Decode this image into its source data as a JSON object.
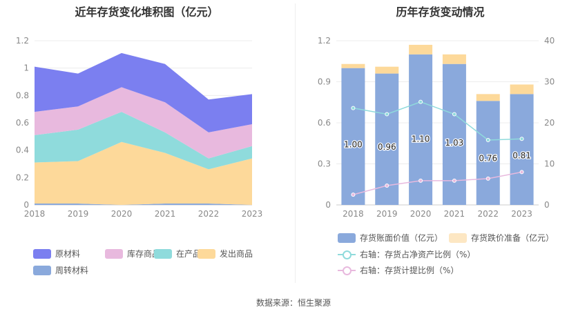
{
  "left_chart": {
    "title": "近年存货变化堆积图（亿元）"
  },
  "right_chart": {
    "title": "历年存货变动情况"
  },
  "source": "数据来源：恒生聚源",
  "colors": {
    "raw_material": "#7b7ff0",
    "inventory_goods": "#e8b9de",
    "wip": "#8fdbdc",
    "shipped_goods": "#fdd99a",
    "turnover_material": "#8aa9dc",
    "book_value": "#8aa9dc",
    "impairment": "#fdd99a",
    "ratio_line": "#8fdbdc",
    "provision_line": "#e8b9de"
  },
  "chart_data": [
    {
      "type": "area",
      "stacked": true,
      "title": "近年存货变化堆积图（亿元）",
      "categories": [
        "2018",
        "2019",
        "2020",
        "2021",
        "2022",
        "2023"
      ],
      "ylim": [
        0,
        1.2
      ],
      "yticks": [
        "0",
        "0.2",
        "0.4",
        "0.6",
        "0.8",
        "1",
        "1.2"
      ],
      "series": [
        {
          "name": "周转材料",
          "color_key": "turnover_material",
          "values": [
            0.01,
            0.01,
            0.0,
            0.01,
            0.01,
            0.0
          ]
        },
        {
          "name": "发出商品",
          "color_key": "shipped_goods",
          "values": [
            0.3,
            0.31,
            0.46,
            0.37,
            0.25,
            0.34
          ]
        },
        {
          "name": "在产品",
          "color_key": "wip",
          "values": [
            0.2,
            0.23,
            0.22,
            0.15,
            0.08,
            0.09
          ]
        },
        {
          "name": "库存商品",
          "color_key": "inventory_goods",
          "values": [
            0.17,
            0.17,
            0.18,
            0.22,
            0.19,
            0.16
          ]
        },
        {
          "name": "原材料",
          "color_key": "raw_material",
          "values": [
            0.33,
            0.24,
            0.25,
            0.28,
            0.24,
            0.22
          ]
        }
      ],
      "legend": [
        "原材料",
        "库存商品",
        "在产品",
        "发出商品",
        "周转材料"
      ]
    },
    {
      "type": "bar",
      "stacked": true,
      "title": "历年存货变动情况",
      "categories": [
        "2018",
        "2019",
        "2020",
        "2021",
        "2022",
        "2023"
      ],
      "ylim": [
        0,
        1.2
      ],
      "yticks": [
        "0",
        "0.3",
        "0.6",
        "0.9",
        "1.2"
      ],
      "y2lim": [
        0,
        40
      ],
      "y2ticks": [
        "0",
        "10",
        "20",
        "30",
        "40"
      ],
      "series": [
        {
          "name": "存货账面价值（亿元）",
          "color_key": "book_value",
          "values": [
            1.0,
            0.96,
            1.1,
            1.03,
            0.76,
            0.81
          ],
          "labels": [
            "1.00",
            "0.96",
            "1.10",
            "1.03",
            "0.76",
            "0.81"
          ]
        },
        {
          "name": "存货跌价准备（亿元）",
          "color_key": "impairment",
          "values": [
            0.03,
            0.05,
            0.07,
            0.07,
            0.05,
            0.07
          ]
        }
      ],
      "lines": [
        {
          "name": "右轴：存货占净资产比例（%）",
          "color_key": "ratio_line",
          "axis": "right",
          "values": [
            23.6,
            22.1,
            25.1,
            22.1,
            15.8,
            16.1
          ]
        },
        {
          "name": "右轴：存货计提比例（%）",
          "color_key": "provision_line",
          "axis": "right",
          "values": [
            2.5,
            4.7,
            5.9,
            5.9,
            6.4,
            8.0
          ]
        }
      ]
    }
  ]
}
